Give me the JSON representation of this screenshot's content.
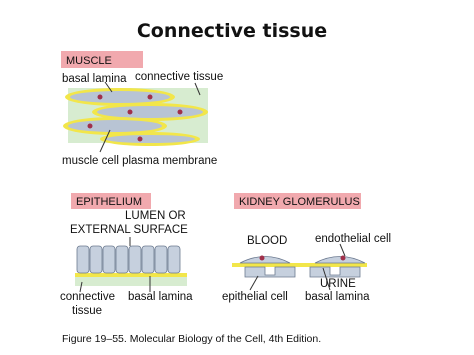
{
  "title": "Connective tissue",
  "muscle": {
    "tag": "MUSCLE",
    "basal_lamina": "basal lamina",
    "connective_tissue": "connective tissue",
    "membrane": "muscle cell plasma membrane"
  },
  "epithelium": {
    "tag": "EPITHELIUM",
    "lumen": [
      "LUMEN OR",
      "EXTERNAL SURFACE"
    ],
    "connective_tissue": [
      "connective",
      "tissue"
    ],
    "basal_lamina": "basal lamina"
  },
  "kidney": {
    "tag": "KIDNEY GLOMERULUS",
    "blood": "BLOOD",
    "endothelial": "endothelial cell",
    "urine": "URINE",
    "epithelial": "epithelial cell",
    "basal_lamina": "basal lamina"
  },
  "caption": "Figure 19–55. Molecular Biology of the Cell, 4th Edition."
}
